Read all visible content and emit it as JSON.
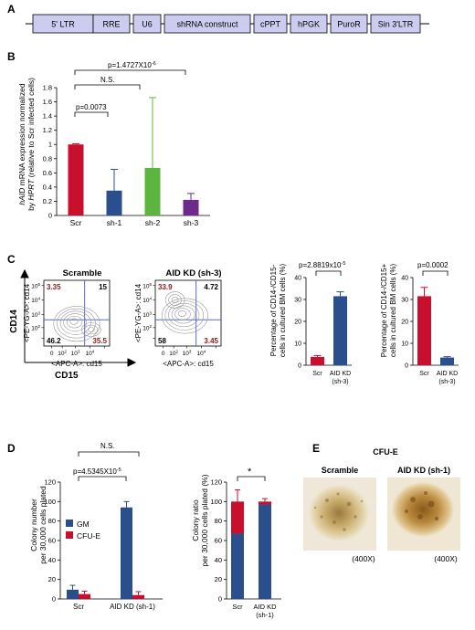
{
  "panel_a": {
    "letter": "A",
    "elements": [
      "5' LTR",
      "RRE",
      "U6",
      "shRNA construct",
      "cPPT",
      "hPGK",
      "PuroR",
      "Sin 3'LTR"
    ]
  },
  "panel_b": {
    "letter": "B",
    "ylabel_line1_a": "hAID",
    "ylabel_line1_b": " mRNA expression normalized",
    "ylabel_line2_a": "by ",
    "ylabel_line2_b": "HPRT",
    "ylabel_line2_c": " (relative to Scr infected cells)",
    "sig": [
      {
        "label": "p=1.4727X10",
        "sup": "-6"
      },
      {
        "label": "N.S.",
        "sup": ""
      },
      {
        "label": "p=0.0073",
        "sup": ""
      }
    ],
    "colors": [
      "#c8102e",
      "#2b4f8c",
      "#5cb53f",
      "#6c2b8c"
    ]
  },
  "panel_c": {
    "letter": "C",
    "flow": [
      {
        "title": "Scramble",
        "ul": "3.35",
        "ur": "15",
        "ll": "46.2",
        "lr": "35.5",
        "ylabel": "<PE-YG-A>: cd14",
        "xlabel": "<APC-A>: cd15"
      },
      {
        "title": "AID KD (sh-3)",
        "ul": "33.9",
        "ur": "4.72",
        "ll": "58",
        "lr": "3.45",
        "ylabel": "<PE-YG-A>: cd14",
        "xlabel": "<APC-A>: cd15"
      }
    ],
    "axis_cd14": "CD14",
    "axis_cd15": "CD15",
    "tick_labels": [
      "0",
      "10",
      "10",
      "10",
      "10"
    ],
    "tick_exps": [
      "",
      "2",
      "3",
      "4",
      "5"
    ],
    "bar1": {
      "ylabel_1": "Percentage of CD14-/CD15-",
      "ylabel_2": "cells in cultured BM cells (%)",
      "p": "p=2.8819x10",
      "p_sup": "-5"
    },
    "bar2": {
      "ylabel_1": "Percentage of CD14-/CD15+",
      "ylabel_2": "cells in cultured BM cells (%)",
      "p": "p=0.0002"
    }
  },
  "panel_d": {
    "letter": "D",
    "ylabel_1": "Colony number",
    "ylabel_2": "per 30,000 cells plated",
    "sig_ns": "N.S.",
    "sig_p": "p=4.5345X10",
    "sig_p_sup": "-5",
    "legend": [
      "GM",
      "CFU-E"
    ],
    "ratio_ylabel_1": "Colony ratio",
    "ratio_ylabel_2": "per 30,000 cells plated (%)",
    "ratio_sig": "*",
    "colors": {
      "gm": "#2b4f8c",
      "cfue": "#c8102e"
    }
  },
  "panel_e": {
    "letter": "E",
    "title": "CFU-E",
    "images": [
      {
        "label": "Scramble",
        "mag": "(400X)"
      },
      {
        "label": "AID KD (sh-1)",
        "mag": "(400X)"
      }
    ]
  },
  "chart_data": [
    {
      "type": "bar",
      "panel": "B",
      "categories": [
        "Scr",
        "sh-1",
        "sh-2",
        "sh-3"
      ],
      "values": [
        1.0,
        0.35,
        0.67,
        0.22
      ],
      "errors": [
        0.01,
        0.3,
        0.99,
        0.09
      ],
      "ylim": [
        0,
        1.8
      ],
      "yticks": [
        0,
        0.2,
        0.4,
        0.6,
        0.8,
        1.0,
        1.2,
        1.4,
        1.6,
        1.8
      ],
      "ytick_labels": [
        "0",
        "0.2",
        "0.4",
        "0.6",
        "0.8",
        "1",
        "1.2",
        "1.4",
        "1.6",
        "1.8"
      ]
    },
    {
      "type": "bar",
      "panel": "C-left",
      "categories": [
        "Scr",
        "AID KD (sh-3)"
      ],
      "category_lines": [
        [
          "Scr"
        ],
        [
          "AID KD",
          "(sh-3)"
        ]
      ],
      "values": [
        3.8,
        31.5
      ],
      "errors": [
        0.6,
        2.0
      ],
      "ylim": [
        0,
        40
      ],
      "yticks": [
        0,
        10,
        20,
        30,
        40
      ],
      "ytick_labels": [
        "0",
        "10",
        "20",
        "30",
        "40"
      ]
    },
    {
      "type": "bar",
      "panel": "C-right",
      "categories": [
        "Scr",
        "AID KD (sh-3)"
      ],
      "category_lines": [
        [
          "Scr"
        ],
        [
          "AID KD",
          "(sh-3)"
        ]
      ],
      "values": [
        31.5,
        3.5
      ],
      "errors": [
        4.0,
        0.4
      ],
      "ylim": [
        0,
        40
      ],
      "yticks": [
        0,
        10,
        20,
        30,
        40
      ],
      "ytick_labels": [
        "0",
        "10",
        "20",
        "30",
        "40"
      ]
    },
    {
      "type": "bar",
      "panel": "D-left",
      "categories": [
        "Scr",
        "AID KD (sh-1)"
      ],
      "series": [
        {
          "name": "GM",
          "values": [
            9.5,
            94
          ],
          "errors": [
            4.5,
            6
          ]
        },
        {
          "name": "CFU-E",
          "values": [
            5,
            4
          ],
          "errors": [
            3,
            3.5
          ]
        }
      ],
      "ylim": [
        0,
        120
      ],
      "yticks": [
        0,
        20,
        40,
        60,
        80,
        100,
        120
      ],
      "ytick_labels": [
        "0",
        "20",
        "40",
        "60",
        "80",
        "100",
        "120"
      ]
    },
    {
      "type": "bar",
      "panel": "D-right",
      "stacked": true,
      "categories": [
        "Scr",
        "AID KD (sh-1)"
      ],
      "category_lines": [
        [
          "Scr"
        ],
        [
          "AID KD",
          "(sh-1)"
        ]
      ],
      "series": [
        {
          "name": "GM",
          "values": [
            67,
            97
          ]
        },
        {
          "name": "CFU-E",
          "values": [
            33,
            3
          ]
        }
      ],
      "ylim": [
        0,
        120
      ],
      "yticks": [
        0,
        20,
        40,
        60,
        80,
        100,
        120
      ],
      "ytick_labels": [
        "0",
        "20",
        "40",
        "60",
        "80",
        "100",
        "120"
      ]
    }
  ]
}
